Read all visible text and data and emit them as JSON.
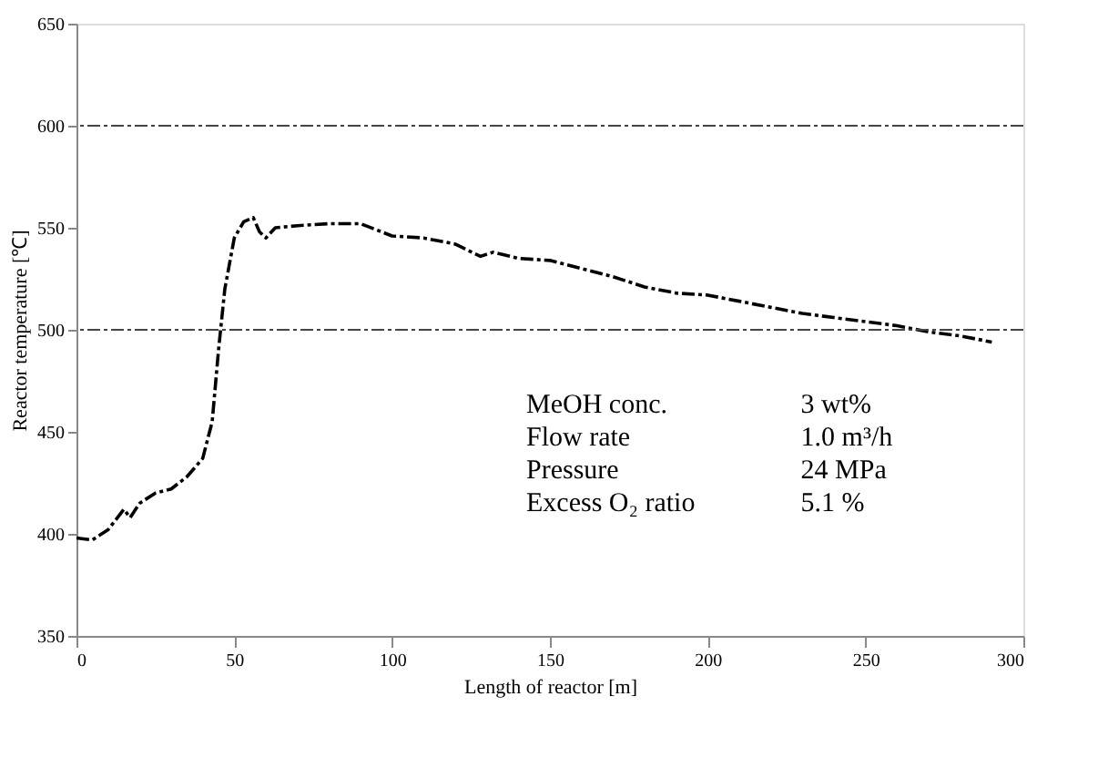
{
  "chart_data": {
    "type": "line",
    "xlabel": "Length of reactor  [m]",
    "ylabel": "Reactor temperature  [℃]",
    "x": [
      0,
      5,
      10,
      15,
      17,
      20,
      25,
      30,
      35,
      40,
      43,
      45,
      47,
      50,
      53,
      56,
      58,
      60,
      63,
      70,
      80,
      90,
      100,
      110,
      120,
      128,
      132,
      140,
      150,
      160,
      170,
      180,
      190,
      200,
      210,
      220,
      230,
      240,
      250,
      260,
      270,
      280,
      290
    ],
    "series": [
      {
        "color": "#000000",
        "values": [
          398,
          397,
          402,
          412,
          408,
          415,
          420,
          422,
          428,
          437,
          455,
          490,
          520,
          545,
          553,
          555,
          548,
          545,
          550,
          551,
          552,
          552,
          546,
          545,
          542,
          536,
          538,
          535,
          534,
          530,
          526,
          521,
          518,
          517,
          514,
          511,
          508,
          506,
          504,
          502,
          499,
          497,
          494
        ]
      }
    ],
    "xlim": [
      0,
      300
    ],
    "xticks": [
      0,
      50,
      100,
      150,
      200,
      250,
      300
    ],
    "ylim": [
      350,
      650
    ],
    "yticks": [
      350,
      400,
      450,
      500,
      550,
      600,
      650
    ],
    "ref_lines": [
      {
        "axis": "y",
        "value": 600,
        "color": "#444444",
        "line_style": "dashed"
      },
      {
        "axis": "y",
        "value": 500,
        "color": "#444444",
        "line_style": "dashed"
      }
    ],
    "annotations": [
      "MeOH  conc.",
      "3  wt%",
      "Flow  rate",
      "1.0  m³/h",
      "Pressure",
      "24  MPa",
      "Excess O₂ ratio",
      "5.1  %"
    ],
    "line_style": "dashed",
    "grid": false
  }
}
